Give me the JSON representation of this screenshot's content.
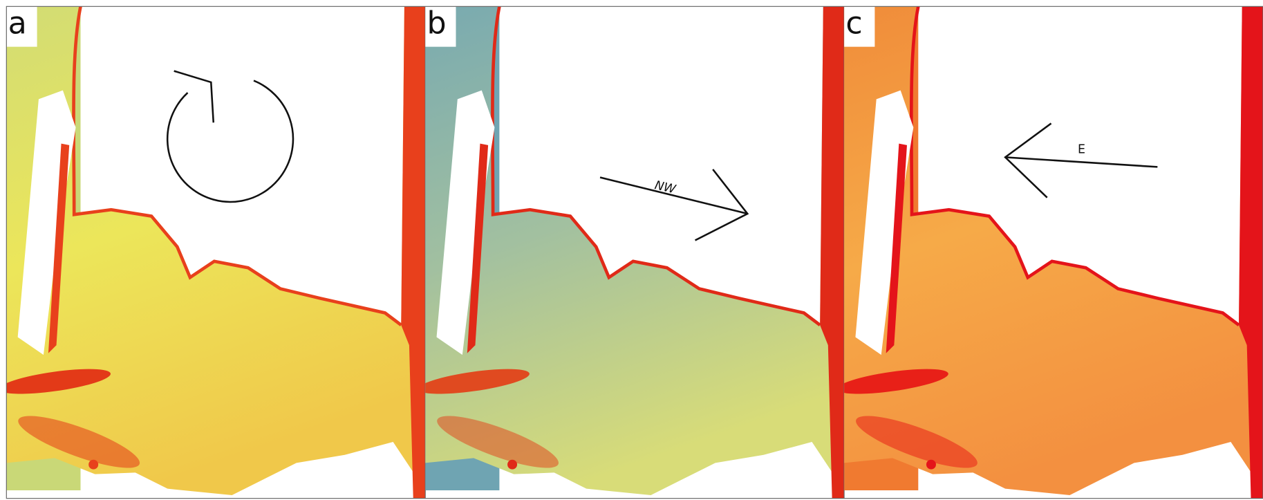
{
  "panels": [
    {
      "label": "a"
    },
    {
      "label": "b",
      "annotation": "NW"
    },
    {
      "label": "c",
      "annotation": "E"
    }
  ]
}
